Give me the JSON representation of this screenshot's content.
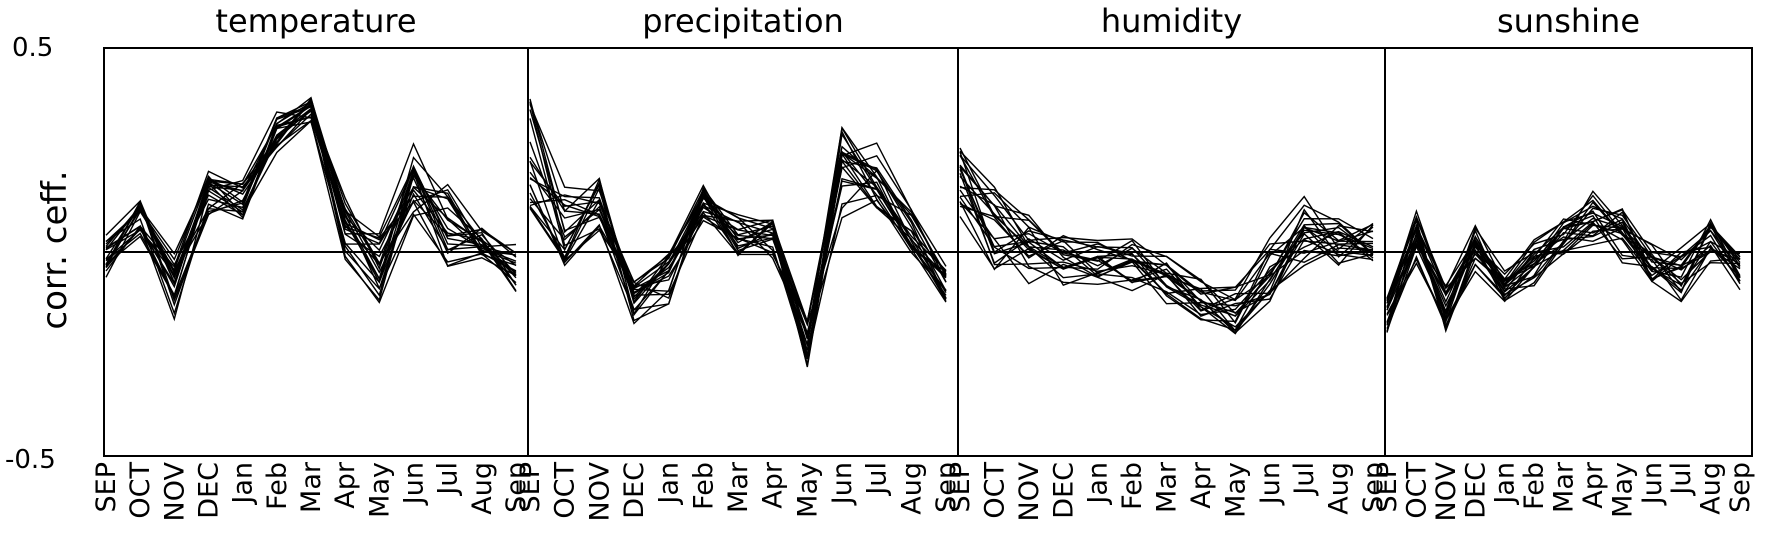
{
  "chart_data": {
    "type": "line",
    "ylabel": "corr. ceff.",
    "ylim": [
      -0.5,
      0.5
    ],
    "yticks": [
      "0.5",
      "-0.5"
    ],
    "months": [
      "SEP",
      "OCT",
      "NOV",
      "DEC",
      "Jan",
      "Feb",
      "Mar",
      "Apr",
      "May",
      "Jun",
      "Jul",
      "Aug",
      "Sep"
    ],
    "zero_line": 0,
    "series_count_per_panel": 22,
    "panels": [
      {
        "title": "temperature",
        "center": [
          -0.02,
          0.09,
          -0.08,
          0.15,
          0.12,
          0.29,
          0.35,
          0.06,
          -0.03,
          0.16,
          0.06,
          0.02,
          -0.05
        ],
        "spread": [
          0.055,
          0.05,
          0.07,
          0.06,
          0.05,
          0.045,
          0.03,
          0.08,
          0.09,
          0.085,
          0.09,
          0.04,
          0.06
        ]
      },
      {
        "title": "precipitation",
        "center": [
          0.25,
          0.06,
          0.12,
          -0.12,
          -0.06,
          0.12,
          0.05,
          0.04,
          -0.22,
          0.21,
          0.18,
          0.05,
          -0.08
        ],
        "spread": [
          0.14,
          0.09,
          0.07,
          0.06,
          0.06,
          0.05,
          0.05,
          0.05,
          0.06,
          0.1,
          0.07,
          0.05,
          0.05
        ]
      },
      {
        "title": "humidity",
        "center": [
          0.18,
          0.06,
          0.02,
          -0.02,
          -0.02,
          -0.03,
          -0.07,
          -0.12,
          -0.15,
          -0.04,
          0.05,
          0.02,
          0.03
        ],
        "spread": [
          0.08,
          0.09,
          0.08,
          0.05,
          0.05,
          0.06,
          0.05,
          0.05,
          0.06,
          0.07,
          0.08,
          0.05,
          0.05
        ]
      },
      {
        "title": "sunshine",
        "center": [
          -0.14,
          0.04,
          -0.14,
          0.01,
          -0.07,
          -0.03,
          0.03,
          0.09,
          0.05,
          -0.02,
          -0.05,
          0.02,
          -0.05
        ],
        "spread": [
          0.06,
          0.06,
          0.05,
          0.05,
          0.05,
          0.05,
          0.05,
          0.06,
          0.08,
          0.05,
          0.06,
          0.05,
          0.05
        ]
      }
    ]
  }
}
